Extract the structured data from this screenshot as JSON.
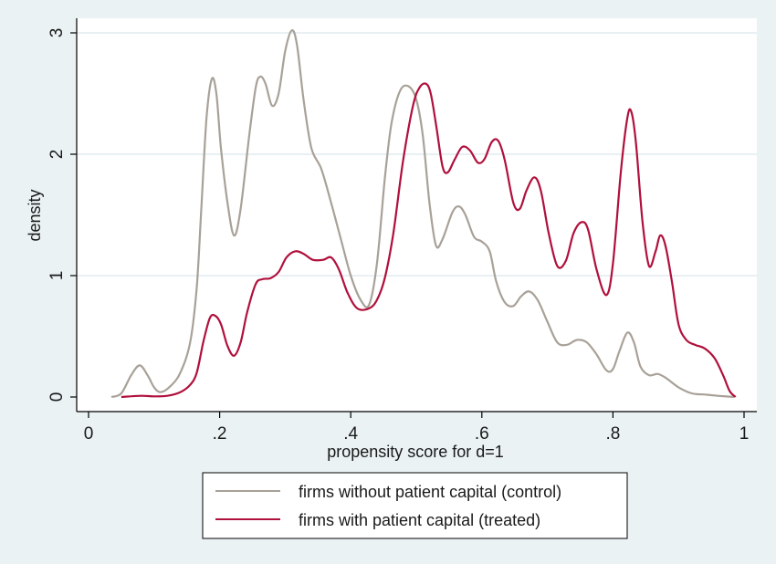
{
  "colors": {
    "background": "#eaf2f3",
    "plot_background": "#ffffff",
    "gridline": "#e1ecef",
    "axis": "#000000",
    "control_series": "#a8a198",
    "treated_series": "#b0103c"
  },
  "chart_data": {
    "type": "line",
    "title": "",
    "xlabel": "propensity score for d=1",
    "ylabel": "density",
    "xlim": [
      0,
      1
    ],
    "ylim": [
      0,
      3
    ],
    "x_ticks": [
      0,
      0.2,
      0.4,
      0.6,
      0.8,
      1
    ],
    "x_tick_labels": [
      "0",
      ".2",
      ".4",
      ".6",
      ".8",
      "1"
    ],
    "y_ticks": [
      0,
      1,
      2,
      3
    ],
    "y_tick_labels": [
      "0",
      "1",
      "2",
      "3"
    ],
    "grid": "horizontal",
    "legend_position": "bottom",
    "series": [
      {
        "name": "firms without patient capital (control)",
        "color": "#a8a198",
        "points": [
          [
            0.035,
            0
          ],
          [
            0.05,
            0.03
          ],
          [
            0.065,
            0.18
          ],
          [
            0.078,
            0.26
          ],
          [
            0.09,
            0.18
          ],
          [
            0.1,
            0.08
          ],
          [
            0.11,
            0.04
          ],
          [
            0.125,
            0.09
          ],
          [
            0.14,
            0.2
          ],
          [
            0.155,
            0.45
          ],
          [
            0.165,
            0.9
          ],
          [
            0.172,
            1.55
          ],
          [
            0.18,
            2.3
          ],
          [
            0.188,
            2.62
          ],
          [
            0.195,
            2.5
          ],
          [
            0.202,
            2.05
          ],
          [
            0.212,
            1.6
          ],
          [
            0.222,
            1.33
          ],
          [
            0.232,
            1.55
          ],
          [
            0.245,
            2.15
          ],
          [
            0.255,
            2.55
          ],
          [
            0.262,
            2.64
          ],
          [
            0.27,
            2.58
          ],
          [
            0.28,
            2.4
          ],
          [
            0.29,
            2.5
          ],
          [
            0.3,
            2.85
          ],
          [
            0.31,
            3.02
          ],
          [
            0.318,
            2.9
          ],
          [
            0.328,
            2.45
          ],
          [
            0.34,
            2.05
          ],
          [
            0.355,
            1.88
          ],
          [
            0.37,
            1.6
          ],
          [
            0.385,
            1.3
          ],
          [
            0.4,
            1.0
          ],
          [
            0.415,
            0.8
          ],
          [
            0.428,
            0.76
          ],
          [
            0.44,
            1.1
          ],
          [
            0.452,
            1.8
          ],
          [
            0.462,
            2.25
          ],
          [
            0.475,
            2.52
          ],
          [
            0.488,
            2.56
          ],
          [
            0.5,
            2.45
          ],
          [
            0.51,
            2.15
          ],
          [
            0.52,
            1.6
          ],
          [
            0.53,
            1.25
          ],
          [
            0.54,
            1.3
          ],
          [
            0.555,
            1.52
          ],
          [
            0.565,
            1.57
          ],
          [
            0.575,
            1.5
          ],
          [
            0.588,
            1.32
          ],
          [
            0.6,
            1.28
          ],
          [
            0.612,
            1.2
          ],
          [
            0.622,
            0.95
          ],
          [
            0.635,
            0.78
          ],
          [
            0.648,
            0.75
          ],
          [
            0.66,
            0.83
          ],
          [
            0.672,
            0.87
          ],
          [
            0.685,
            0.8
          ],
          [
            0.7,
            0.62
          ],
          [
            0.715,
            0.45
          ],
          [
            0.73,
            0.43
          ],
          [
            0.745,
            0.47
          ],
          [
            0.76,
            0.45
          ],
          [
            0.775,
            0.35
          ],
          [
            0.79,
            0.22
          ],
          [
            0.8,
            0.23
          ],
          [
            0.81,
            0.38
          ],
          [
            0.822,
            0.53
          ],
          [
            0.832,
            0.45
          ],
          [
            0.842,
            0.25
          ],
          [
            0.855,
            0.18
          ],
          [
            0.868,
            0.19
          ],
          [
            0.88,
            0.16
          ],
          [
            0.9,
            0.08
          ],
          [
            0.92,
            0.03
          ],
          [
            0.94,
            0.02
          ],
          [
            0.96,
            0.01
          ],
          [
            0.985,
            0
          ]
        ]
      },
      {
        "name": "firms with patient capital (treated)",
        "color": "#b0103c",
        "points": [
          [
            0.05,
            0
          ],
          [
            0.08,
            0.01
          ],
          [
            0.1,
            0.005
          ],
          [
            0.12,
            0.01
          ],
          [
            0.14,
            0.04
          ],
          [
            0.155,
            0.1
          ],
          [
            0.165,
            0.2
          ],
          [
            0.175,
            0.45
          ],
          [
            0.185,
            0.65
          ],
          [
            0.193,
            0.67
          ],
          [
            0.202,
            0.6
          ],
          [
            0.212,
            0.42
          ],
          [
            0.222,
            0.34
          ],
          [
            0.232,
            0.45
          ],
          [
            0.242,
            0.7
          ],
          [
            0.255,
            0.93
          ],
          [
            0.265,
            0.97
          ],
          [
            0.278,
            0.98
          ],
          [
            0.29,
            1.03
          ],
          [
            0.302,
            1.15
          ],
          [
            0.315,
            1.2
          ],
          [
            0.328,
            1.18
          ],
          [
            0.342,
            1.13
          ],
          [
            0.358,
            1.13
          ],
          [
            0.37,
            1.15
          ],
          [
            0.382,
            1.05
          ],
          [
            0.395,
            0.86
          ],
          [
            0.41,
            0.73
          ],
          [
            0.428,
            0.73
          ],
          [
            0.44,
            0.8
          ],
          [
            0.452,
            0.98
          ],
          [
            0.465,
            1.35
          ],
          [
            0.48,
            1.95
          ],
          [
            0.495,
            2.4
          ],
          [
            0.505,
            2.55
          ],
          [
            0.515,
            2.58
          ],
          [
            0.522,
            2.5
          ],
          [
            0.53,
            2.25
          ],
          [
            0.54,
            1.9
          ],
          [
            0.548,
            1.85
          ],
          [
            0.558,
            1.95
          ],
          [
            0.57,
            2.06
          ],
          [
            0.582,
            2.03
          ],
          [
            0.594,
            1.93
          ],
          [
            0.604,
            1.96
          ],
          [
            0.615,
            2.1
          ],
          [
            0.625,
            2.11
          ],
          [
            0.635,
            1.95
          ],
          [
            0.648,
            1.6
          ],
          [
            0.658,
            1.55
          ],
          [
            0.668,
            1.7
          ],
          [
            0.68,
            1.81
          ],
          [
            0.69,
            1.7
          ],
          [
            0.702,
            1.35
          ],
          [
            0.715,
            1.08
          ],
          [
            0.728,
            1.12
          ],
          [
            0.74,
            1.35
          ],
          [
            0.752,
            1.44
          ],
          [
            0.762,
            1.38
          ],
          [
            0.775,
            1.05
          ],
          [
            0.79,
            0.84
          ],
          [
            0.8,
            1.1
          ],
          [
            0.812,
            1.85
          ],
          [
            0.822,
            2.3
          ],
          [
            0.828,
            2.35
          ],
          [
            0.835,
            2.1
          ],
          [
            0.845,
            1.45
          ],
          [
            0.855,
            1.08
          ],
          [
            0.865,
            1.2
          ],
          [
            0.872,
            1.33
          ],
          [
            0.88,
            1.25
          ],
          [
            0.89,
            0.95
          ],
          [
            0.9,
            0.6
          ],
          [
            0.912,
            0.47
          ],
          [
            0.925,
            0.43
          ],
          [
            0.94,
            0.4
          ],
          [
            0.955,
            0.32
          ],
          [
            0.968,
            0.18
          ],
          [
            0.978,
            0.05
          ],
          [
            0.987,
            0
          ]
        ]
      }
    ]
  }
}
